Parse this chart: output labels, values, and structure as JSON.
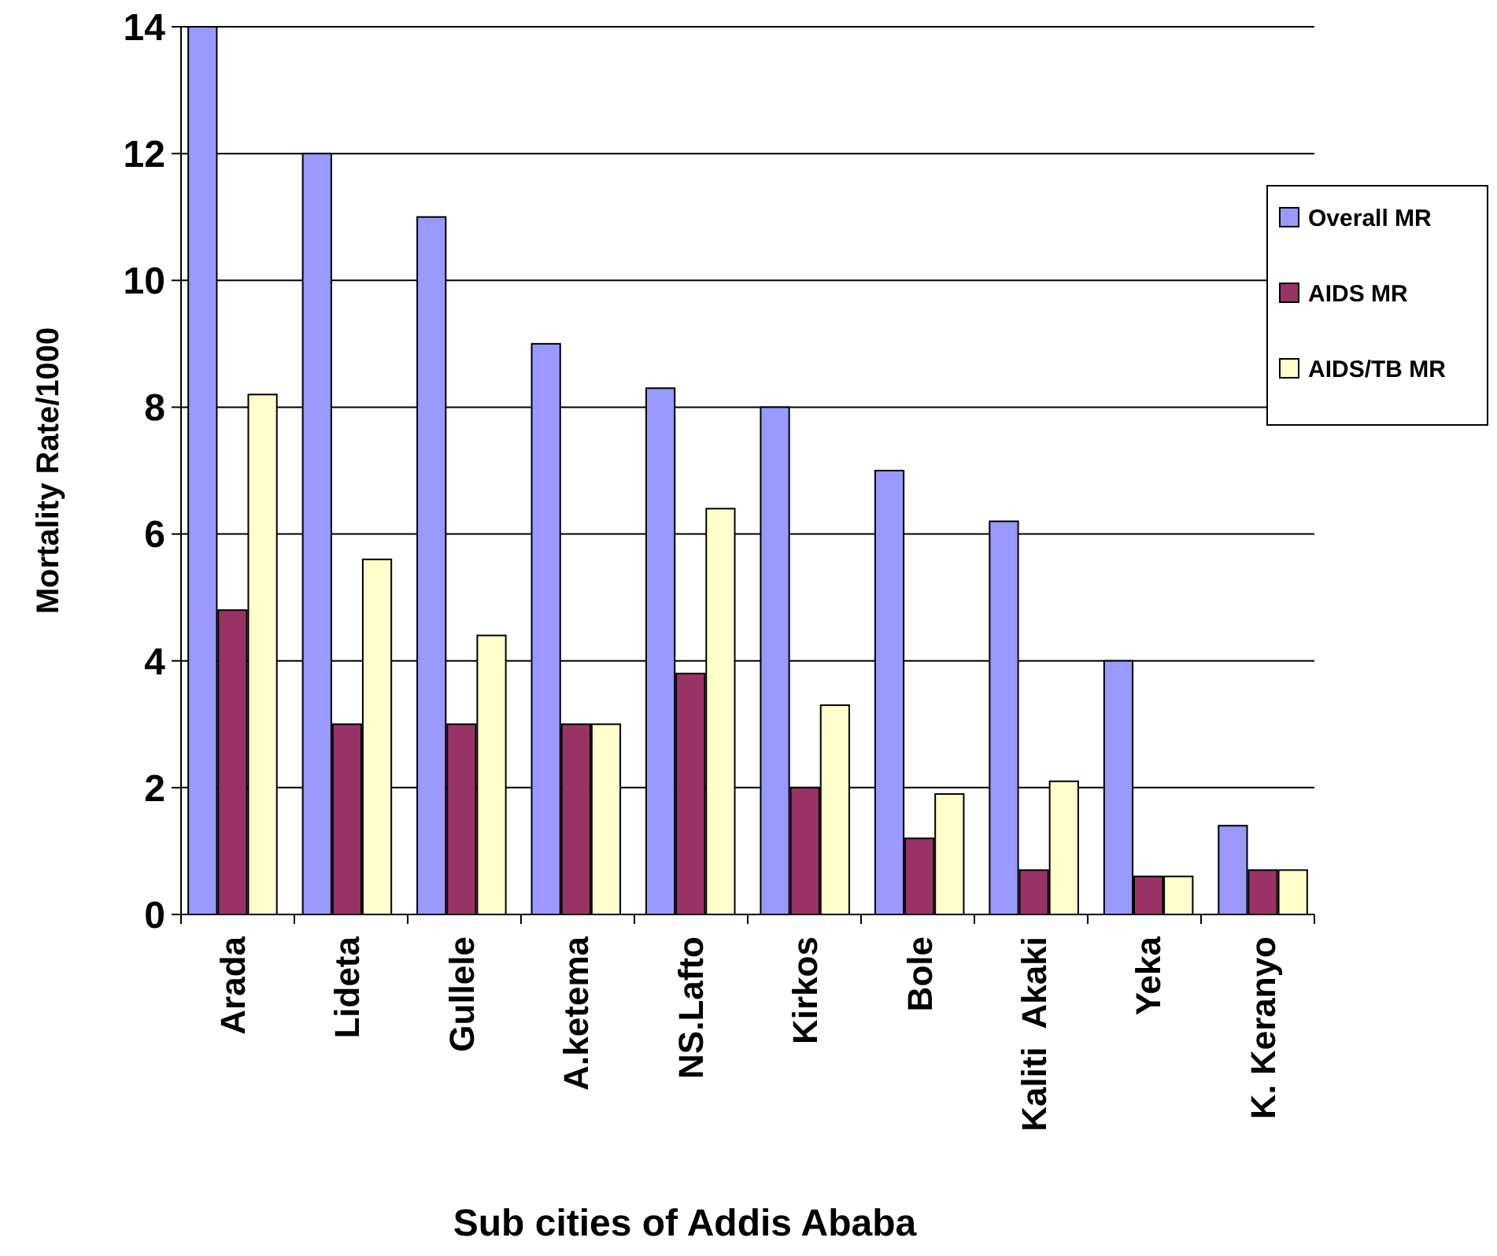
{
  "chart_data": {
    "type": "bar",
    "xlabel": "Sub cities of Addis Ababa",
    "ylabel": "Mortality Rate/1000",
    "categories": [
      "Arada",
      "Lideta",
      "Gullele",
      "A.ketema",
      "NS.Lafto",
      "Kirkos",
      "Bole",
      "Kaliti  Akaki",
      "Yeka",
      "K. Keranyo"
    ],
    "series": [
      {
        "name": "Overall MR",
        "color": "#9999ff",
        "values": [
          14,
          12,
          11,
          9,
          8.3,
          8,
          7,
          6.2,
          4,
          1.4
        ]
      },
      {
        "name": "AIDS MR",
        "color": "#993366",
        "values": [
          4.8,
          3,
          3,
          3,
          3.8,
          2,
          1.2,
          0.7,
          0.6,
          0.7
        ]
      },
      {
        "name": "AIDS/TB MR",
        "color": "#ffffcc",
        "values": [
          8.2,
          5.6,
          4.4,
          3,
          6.4,
          3.3,
          1.9,
          2.1,
          0.6,
          0.7
        ]
      }
    ],
    "ylim": [
      0,
      14
    ],
    "yticks": [
      0,
      2,
      4,
      6,
      8,
      10,
      12,
      14
    ],
    "grid": "y",
    "legend": "right"
  }
}
